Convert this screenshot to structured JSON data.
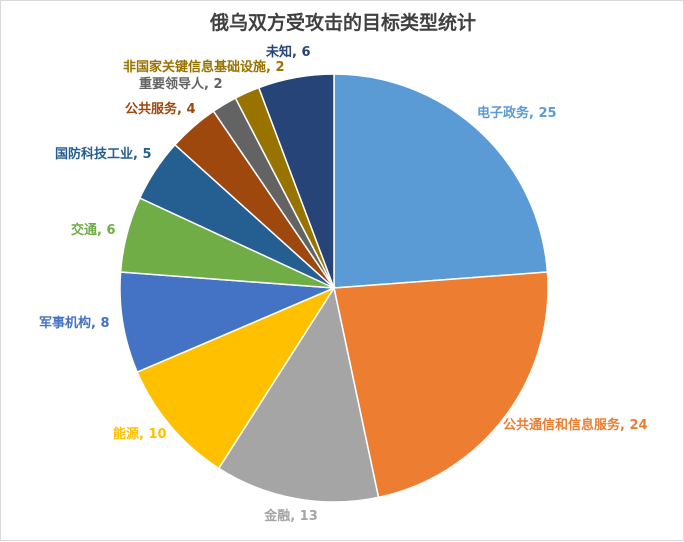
{
  "chart_data": {
    "type": "pie",
    "title": "俄乌双方受攻击的目标类型统计",
    "slices": [
      {
        "label": "电子政务",
        "value": 25,
        "color": "#5b9bd5",
        "display": "电子政务, 25"
      },
      {
        "label": "公共通信和信息服务",
        "value": 24,
        "color": "#ed7d31",
        "display": "公共通信和信息服务, 24"
      },
      {
        "label": "金融",
        "value": 13,
        "color": "#a5a5a5",
        "display": "金融, 13"
      },
      {
        "label": "能源",
        "value": 10,
        "color": "#ffc000",
        "display": "能源, 10"
      },
      {
        "label": "军事机构",
        "value": 8,
        "color": "#4472c4",
        "display": "军事机构, 8"
      },
      {
        "label": "交通",
        "value": 6,
        "color": "#70ad47",
        "display": "交通, 6"
      },
      {
        "label": "国防科技工业",
        "value": 5,
        "color": "#255e91",
        "display": "国防科技工业, 5"
      },
      {
        "label": "公共服务",
        "value": 4,
        "color": "#9e480e",
        "display": "公共服务, 4"
      },
      {
        "label": "重要领导人",
        "value": 2,
        "color": "#636363",
        "display": "重要领导人, 2"
      },
      {
        "label": "非国家关键信息基础设施",
        "value": 2,
        "color": "#997300",
        "display": "非国家关键信息基础设施, 2"
      },
      {
        "label": "未知",
        "value": 6,
        "color": "#264478",
        "display": "未知, 6"
      }
    ]
  }
}
